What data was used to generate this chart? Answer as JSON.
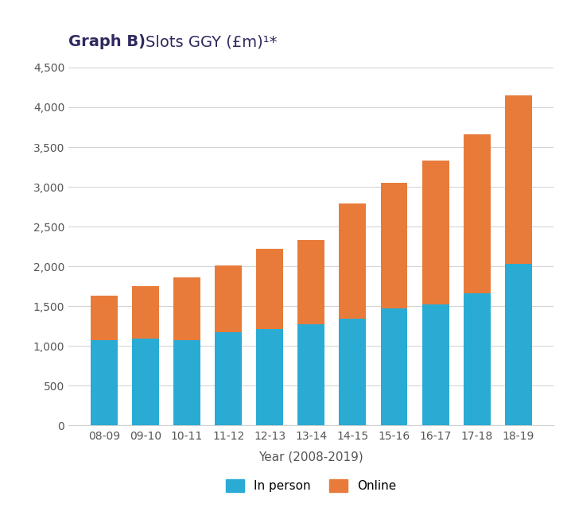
{
  "categories": [
    "08-09",
    "09-10",
    "10-11",
    "11-12",
    "12-13",
    "13-14",
    "14-15",
    "15-16",
    "16-17",
    "17-18",
    "18-19"
  ],
  "in_person": [
    1070,
    1090,
    1070,
    1170,
    1215,
    1275,
    1345,
    1470,
    1520,
    1660,
    2030
  ],
  "online": [
    560,
    660,
    790,
    840,
    1010,
    1060,
    1450,
    1580,
    1810,
    2000,
    2120
  ],
  "color_in_person": "#29ABD4",
  "color_online": "#E87B3A",
  "title_bold": "Graph B)",
  "title_normal": " Slots GGY (£m)¹*",
  "xlabel": "Year (2008-2019)",
  "ylim": [
    0,
    4500
  ],
  "yticks": [
    0,
    500,
    1000,
    1500,
    2000,
    2500,
    3000,
    3500,
    4000,
    4500
  ],
  "legend_in_person": "In person",
  "legend_online": "Online",
  "background_color": "#ffffff",
  "title_color_bold": "#2E2A5E",
  "title_color_normal": "#5A5A7A",
  "grid_color": "#d0d0d0",
  "bar_width": 0.65
}
